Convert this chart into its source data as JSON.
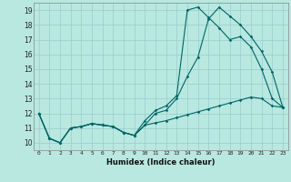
{
  "xlabel": "Humidex (Indice chaleur)",
  "xlim": [
    -0.5,
    23.5
  ],
  "ylim": [
    9.5,
    19.5
  ],
  "xticks": [
    0,
    1,
    2,
    3,
    4,
    5,
    6,
    7,
    8,
    9,
    10,
    11,
    12,
    13,
    14,
    15,
    16,
    17,
    18,
    19,
    20,
    21,
    22,
    23
  ],
  "yticks": [
    10,
    11,
    12,
    13,
    14,
    15,
    16,
    17,
    18,
    19
  ],
  "background_color": "#b8e8e0",
  "line_color": "#006666",
  "grid_color": "#99cccc",
  "line1_y": [
    12,
    10.3,
    10.0,
    11.0,
    11.1,
    11.3,
    11.2,
    11.1,
    10.7,
    10.5,
    11.2,
    12.0,
    12.2,
    13.0,
    14.5,
    15.8,
    18.4,
    19.2,
    18.6,
    18.0,
    17.2,
    16.2,
    14.8,
    12.4
  ],
  "line2_y": [
    12,
    10.3,
    10.0,
    11.0,
    11.1,
    11.3,
    11.2,
    11.1,
    10.7,
    10.5,
    11.5,
    12.2,
    12.5,
    13.2,
    19.0,
    19.2,
    18.5,
    17.8,
    17.0,
    17.2,
    16.5,
    15.0,
    13.0,
    12.4
  ],
  "line3_y": [
    12.0,
    10.3,
    10.0,
    11.0,
    11.1,
    11.3,
    11.2,
    11.1,
    10.7,
    10.5,
    11.2,
    11.35,
    11.5,
    11.7,
    11.9,
    12.1,
    12.3,
    12.5,
    12.7,
    12.9,
    13.1,
    13.0,
    12.5,
    12.4
  ]
}
